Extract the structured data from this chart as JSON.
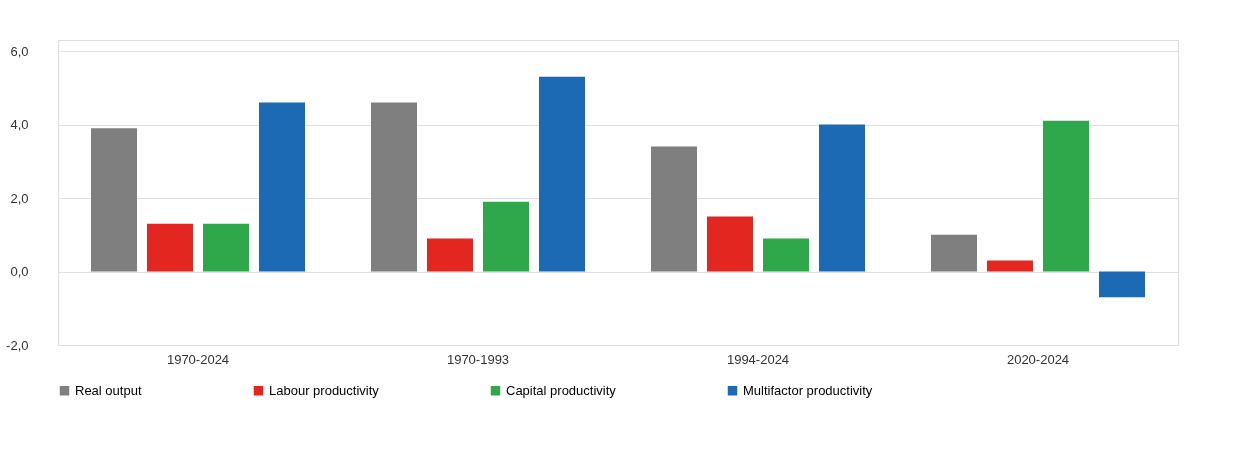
{
  "chart_data": {
    "type": "bar",
    "categories": [
      "1970-2024",
      "1970-1993",
      "1994-2024",
      "2020-2024"
    ],
    "series": [
      {
        "name": "Real output",
        "color": "#7f7f7f",
        "values": [
          3.9,
          4.6,
          3.4,
          1.0
        ]
      },
      {
        "name": "Labour productivity",
        "color": "#e3261f",
        "values": [
          1.3,
          0.9,
          1.5,
          0.3
        ]
      },
      {
        "name": "Capital productivity",
        "color": "#2ea84b",
        "values": [
          1.3,
          1.9,
          0.9,
          4.1
        ]
      },
      {
        "name": "Multifactor productivity",
        "color": "#1c69b4",
        "values": [
          4.6,
          5.3,
          4.0,
          -0.7
        ]
      }
    ],
    "ylim": [
      -2,
      6.3
    ],
    "yticks": [
      {
        "value": -2,
        "label": "-2,0"
      },
      {
        "value": 0,
        "label": "0,0"
      },
      {
        "value": 2,
        "label": "2,0"
      },
      {
        "value": 4,
        "label": "4,0"
      },
      {
        "value": 6,
        "label": "6,0"
      }
    ],
    "grid": "y",
    "legend": "bottom"
  }
}
